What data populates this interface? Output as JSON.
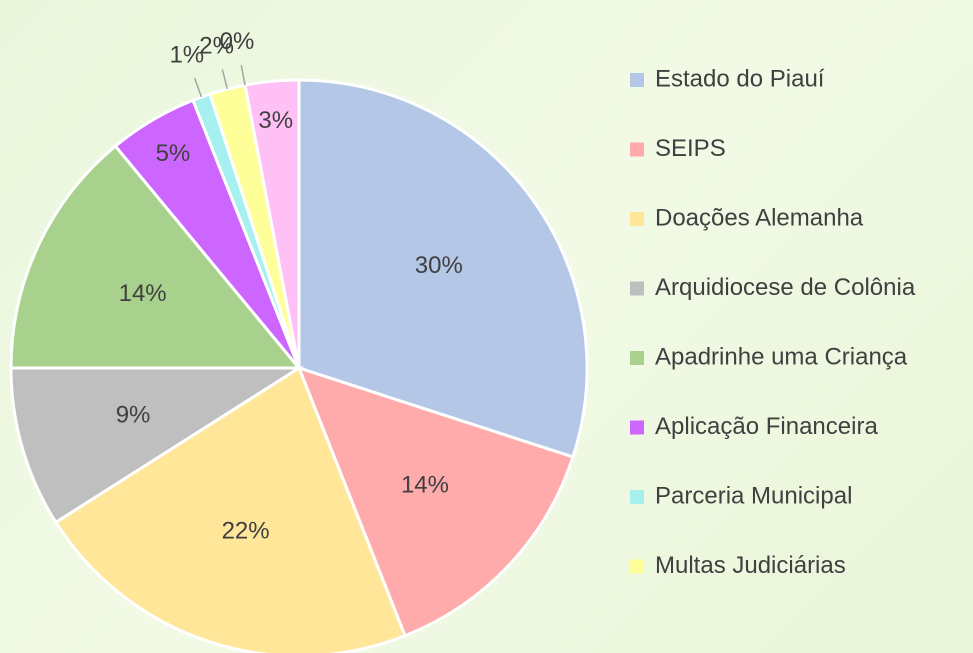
{
  "chart_data": {
    "type": "pie",
    "categories": [
      "Estado do Piauí",
      "SEIPS",
      "Doações Alemanha",
      "Arquidiocese de Colônia",
      "Apadrinhe uma Criança",
      "Aplicação Financeira",
      "Parceria Municipal",
      "Multas Judiciárias",
      null,
      null
    ],
    "values": [
      30,
      14,
      22,
      9,
      14,
      5,
      1,
      2,
      0,
      3
    ],
    "value_labels": [
      "30%",
      "14%",
      "22%",
      "9%",
      "14%",
      "5%",
      "1%",
      "2%",
      "0%",
      "3%"
    ],
    "colors": [
      "#b4c7e7",
      "#ffabab",
      "#ffe699",
      "#bfbfbf",
      "#a9d18e",
      "#cc66ff",
      "#a6f0f0",
      "#ffff99",
      "#ffd9b3",
      "#ffc0f5"
    ],
    "legend": "right"
  }
}
